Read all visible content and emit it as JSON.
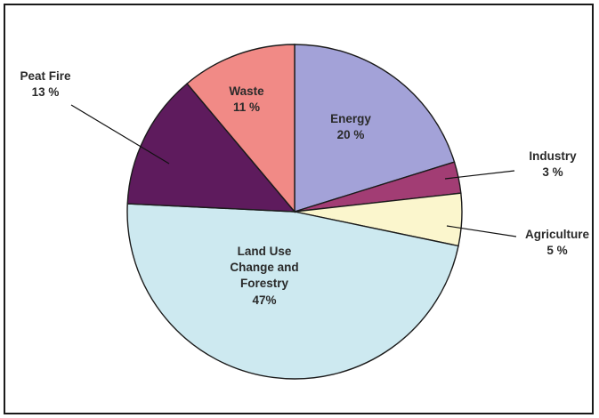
{
  "chart_data": {
    "type": "pie",
    "title": "",
    "slices": [
      {
        "name": "Energy",
        "value": 20,
        "label": "20 %",
        "color": "#a3a2d8"
      },
      {
        "name": "Industry",
        "value": 3,
        "label": "3 %",
        "color": "#a23d74"
      },
      {
        "name": "Agriculture",
        "value": 5,
        "label": "5 %",
        "color": "#fbf6cd"
      },
      {
        "name": "Land Use Change and Forestry",
        "value": 47,
        "label": "47%",
        "color": "#cde9f0"
      },
      {
        "name": "Peat Fire",
        "value": 13,
        "label": "13 %",
        "color": "#5e1b5d"
      },
      {
        "name": "Waste",
        "value": 11,
        "label": "11 %",
        "color": "#f18a86"
      }
    ],
    "legend": "none"
  }
}
